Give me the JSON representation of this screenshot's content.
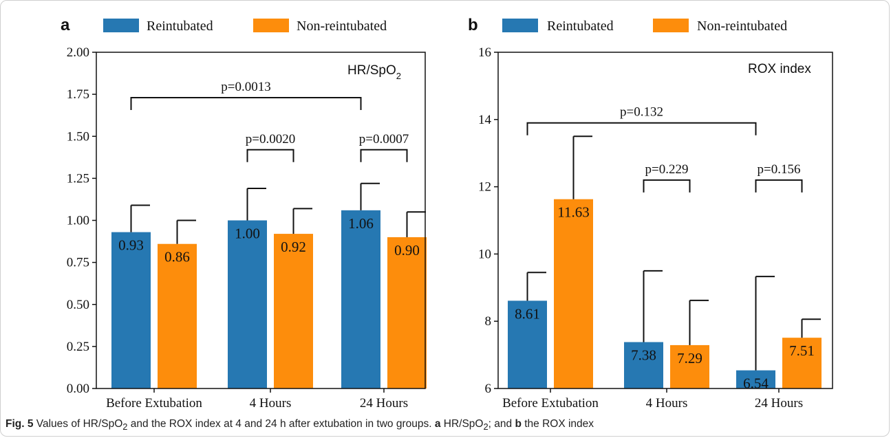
{
  "colors": {
    "reintubated": "#2678b2",
    "non_reintubated": "#fd8d0c",
    "axis": "#111111"
  },
  "caption": {
    "fig_label": "Fig. 5",
    "text_1": " Values of HR/SpO",
    "sub_1": "2",
    "text_2": " and the ROX index at 4 and 24 h after extubation in two groups. ",
    "bold_a": "a",
    "text_3": " HR/SpO",
    "sub_2": "2",
    "text_4": "; and ",
    "bold_b": "b",
    "text_5": " the ROX index"
  },
  "chart_data": [
    {
      "type": "bar",
      "panel_label": "a",
      "annotation": "HR/SpO",
      "annotation_sub": "2",
      "categories": [
        "Before Extubation",
        "4 Hours",
        "24 Hours"
      ],
      "ylim": [
        0,
        2.0
      ],
      "yticks": [
        "0.00",
        "0.25",
        "0.50",
        "0.75",
        "1.00",
        "1.25",
        "1.50",
        "1.75",
        "2.00"
      ],
      "ytick_values": [
        0,
        0.25,
        0.5,
        0.75,
        1.0,
        1.25,
        1.5,
        1.75,
        2.0
      ],
      "series": [
        {
          "name": "Reintubated",
          "values": [
            0.93,
            1.0,
            1.06
          ],
          "labels": [
            "0.93",
            "1.00",
            "1.06"
          ],
          "error_top": [
            1.09,
            1.19,
            1.22
          ]
        },
        {
          "name": "Non-reintubated",
          "values": [
            0.86,
            0.92,
            0.9
          ],
          "labels": [
            "0.86",
            "0.92",
            "0.90"
          ],
          "error_top": [
            1.0,
            1.07,
            1.05
          ]
        }
      ],
      "brackets": [
        {
          "from": "Before Extubation/Reintubated",
          "to": "24 Hours/Reintubated",
          "level": 1.73,
          "text": "p=0.0013"
        },
        {
          "from": "4 Hours/Reintubated",
          "to": "4 Hours/Non-reintubated",
          "level": 1.42,
          "text": "p=0.0020"
        },
        {
          "from": "24 Hours/Reintubated",
          "to": "24 Hours/Non-reintubated",
          "level": 1.42,
          "text": "p=0.0007"
        }
      ],
      "legend": "top"
    },
    {
      "type": "bar",
      "panel_label": "b",
      "annotation": "ROX index",
      "categories": [
        "Before Extubation",
        "4 Hours",
        "24 Hours"
      ],
      "ylim": [
        6,
        16
      ],
      "yticks": [
        "6",
        "8",
        "10",
        "12",
        "14",
        "16"
      ],
      "ytick_values": [
        6,
        8,
        10,
        12,
        14,
        16
      ],
      "series": [
        {
          "name": "Reintubated",
          "values": [
            8.61,
            7.38,
            6.54
          ],
          "labels": [
            "8.61",
            "7.38",
            "6.54"
          ],
          "error_top": [
            9.45,
            9.5,
            9.33
          ]
        },
        {
          "name": "Non-reintubated",
          "values": [
            11.63,
            7.29,
            7.51
          ],
          "labels": [
            "11.63",
            "7.29",
            "7.51"
          ],
          "error_top": [
            13.5,
            8.62,
            8.06
          ]
        }
      ],
      "brackets": [
        {
          "from": "Before Extubation/Reintubated",
          "to": "24 Hours/Reintubated",
          "level": 13.9,
          "text": "p=0.132"
        },
        {
          "from": "4 Hours/Reintubated",
          "to": "4 Hours/Non-reintubated",
          "level": 12.2,
          "text": "p=0.229"
        },
        {
          "from": "24 Hours/Reintubated",
          "to": "24 Hours/Non-reintubated",
          "level": 12.2,
          "text": "p=0.156"
        }
      ],
      "legend": "top"
    }
  ]
}
